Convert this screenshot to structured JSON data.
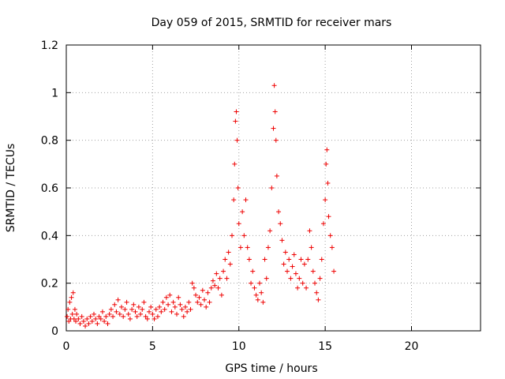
{
  "chart_data": {
    "type": "scatter",
    "title": "Day 059 of 2015, SRMTID for receiver mars",
    "xlabel": "GPS time / hours",
    "ylabel": "SRMTID / TECUs",
    "xlim": [
      0,
      24
    ],
    "ylim": [
      0,
      1.2
    ],
    "x_ticks": [
      0,
      5,
      10,
      15,
      20
    ],
    "y_ticks": [
      0,
      0.2,
      0.4,
      0.6,
      0.8,
      1,
      1.2
    ],
    "x_tick_labels": [
      "0",
      "5",
      "10",
      "15",
      "20"
    ],
    "y_tick_labels": [
      "0",
      "0.2",
      "0.4",
      "0.6",
      "0.8",
      "1",
      "1.2"
    ],
    "grid": true,
    "marker": "+",
    "colors": {
      "series": "#ee0000",
      "grid": "#a0a0a0",
      "axis": "#000000"
    },
    "series": [
      {
        "points": [
          [
            0.05,
            0.06
          ],
          [
            0.1,
            0.09
          ],
          [
            0.15,
            0.04
          ],
          [
            0.2,
            0.12
          ],
          [
            0.25,
            0.05
          ],
          [
            0.3,
            0.14
          ],
          [
            0.35,
            0.07
          ],
          [
            0.4,
            0.16
          ],
          [
            0.45,
            0.05
          ],
          [
            0.5,
            0.09
          ],
          [
            0.55,
            0.04
          ],
          [
            0.6,
            0.07
          ],
          [
            0.7,
            0.05
          ],
          [
            0.8,
            0.03
          ],
          [
            0.9,
            0.06
          ],
          [
            1.0,
            0.04
          ],
          [
            1.1,
            0.02
          ],
          [
            1.2,
            0.05
          ],
          [
            1.3,
            0.03
          ],
          [
            1.4,
            0.06
          ],
          [
            1.5,
            0.04
          ],
          [
            1.6,
            0.07
          ],
          [
            1.7,
            0.05
          ],
          [
            1.8,
            0.03
          ],
          [
            1.9,
            0.06
          ],
          [
            2.0,
            0.05
          ],
          [
            2.1,
            0.08
          ],
          [
            2.2,
            0.04
          ],
          [
            2.3,
            0.06
          ],
          [
            2.4,
            0.03
          ],
          [
            2.5,
            0.07
          ],
          [
            2.6,
            0.09
          ],
          [
            2.7,
            0.06
          ],
          [
            2.8,
            0.11
          ],
          [
            2.9,
            0.08
          ],
          [
            3.0,
            0.13
          ],
          [
            3.1,
            0.07
          ],
          [
            3.2,
            0.1
          ],
          [
            3.3,
            0.06
          ],
          [
            3.4,
            0.09
          ],
          [
            3.5,
            0.12
          ],
          [
            3.6,
            0.07
          ],
          [
            3.7,
            0.05
          ],
          [
            3.8,
            0.09
          ],
          [
            3.9,
            0.11
          ],
          [
            4.0,
            0.08
          ],
          [
            4.1,
            0.06
          ],
          [
            4.2,
            0.1
          ],
          [
            4.3,
            0.07
          ],
          [
            4.4,
            0.09
          ],
          [
            4.5,
            0.12
          ],
          [
            4.6,
            0.06
          ],
          [
            4.7,
            0.05
          ],
          [
            4.8,
            0.08
          ],
          [
            4.9,
            0.1
          ],
          [
            5.0,
            0.07
          ],
          [
            5.1,
            0.05
          ],
          [
            5.2,
            0.09
          ],
          [
            5.3,
            0.06
          ],
          [
            5.4,
            0.1
          ],
          [
            5.5,
            0.08
          ],
          [
            5.6,
            0.12
          ],
          [
            5.7,
            0.09
          ],
          [
            5.8,
            0.14
          ],
          [
            5.9,
            0.11
          ],
          [
            6.0,
            0.15
          ],
          [
            6.1,
            0.08
          ],
          [
            6.2,
            0.12
          ],
          [
            6.3,
            0.1
          ],
          [
            6.4,
            0.07
          ],
          [
            6.5,
            0.14
          ],
          [
            6.6,
            0.11
          ],
          [
            6.7,
            0.09
          ],
          [
            6.8,
            0.06
          ],
          [
            6.9,
            0.1
          ],
          [
            7.0,
            0.08
          ],
          [
            7.1,
            0.12
          ],
          [
            7.2,
            0.09
          ],
          [
            7.3,
            0.2
          ],
          [
            7.4,
            0.18
          ],
          [
            7.5,
            0.15
          ],
          [
            7.6,
            0.12
          ],
          [
            7.7,
            0.14
          ],
          [
            7.8,
            0.11
          ],
          [
            7.9,
            0.17
          ],
          [
            8.0,
            0.13
          ],
          [
            8.1,
            0.1
          ],
          [
            8.2,
            0.16
          ],
          [
            8.3,
            0.12
          ],
          [
            8.4,
            0.18
          ],
          [
            8.5,
            0.21
          ],
          [
            8.6,
            0.19
          ],
          [
            8.7,
            0.24
          ],
          [
            8.8,
            0.18
          ],
          [
            8.9,
            0.22
          ],
          [
            9.0,
            0.15
          ],
          [
            9.1,
            0.25
          ],
          [
            9.2,
            0.3
          ],
          [
            9.3,
            0.22
          ],
          [
            9.4,
            0.33
          ],
          [
            9.5,
            0.28
          ],
          [
            9.6,
            0.4
          ],
          [
            9.7,
            0.55
          ],
          [
            9.75,
            0.7
          ],
          [
            9.8,
            0.88
          ],
          [
            9.85,
            0.92
          ],
          [
            9.9,
            0.8
          ],
          [
            9.95,
            0.6
          ],
          [
            10.0,
            0.45
          ],
          [
            10.1,
            0.35
          ],
          [
            10.2,
            0.5
          ],
          [
            10.3,
            0.4
          ],
          [
            10.4,
            0.55
          ],
          [
            10.5,
            0.35
          ],
          [
            10.6,
            0.3
          ],
          [
            10.7,
            0.2
          ],
          [
            10.8,
            0.25
          ],
          [
            10.9,
            0.18
          ],
          [
            11.0,
            0.15
          ],
          [
            11.1,
            0.13
          ],
          [
            11.2,
            0.2
          ],
          [
            11.3,
            0.16
          ],
          [
            11.4,
            0.12
          ],
          [
            11.5,
            0.3
          ],
          [
            11.6,
            0.22
          ],
          [
            11.7,
            0.35
          ],
          [
            11.8,
            0.42
          ],
          [
            11.9,
            0.6
          ],
          [
            12.0,
            0.85
          ],
          [
            12.05,
            1.03
          ],
          [
            12.1,
            0.92
          ],
          [
            12.15,
            0.8
          ],
          [
            12.2,
            0.65
          ],
          [
            12.3,
            0.5
          ],
          [
            12.4,
            0.45
          ],
          [
            12.5,
            0.38
          ],
          [
            12.6,
            0.28
          ],
          [
            12.7,
            0.33
          ],
          [
            12.8,
            0.25
          ],
          [
            12.9,
            0.3
          ],
          [
            13.0,
            0.22
          ],
          [
            13.1,
            0.27
          ],
          [
            13.2,
            0.32
          ],
          [
            13.3,
            0.24
          ],
          [
            13.4,
            0.18
          ],
          [
            13.5,
            0.22
          ],
          [
            13.6,
            0.3
          ],
          [
            13.7,
            0.2
          ],
          [
            13.8,
            0.28
          ],
          [
            13.9,
            0.18
          ],
          [
            14.0,
            0.3
          ],
          [
            14.1,
            0.42
          ],
          [
            14.2,
            0.35
          ],
          [
            14.3,
            0.25
          ],
          [
            14.4,
            0.2
          ],
          [
            14.5,
            0.16
          ],
          [
            14.6,
            0.13
          ],
          [
            14.7,
            0.22
          ],
          [
            14.8,
            0.3
          ],
          [
            14.9,
            0.45
          ],
          [
            15.0,
            0.55
          ],
          [
            15.05,
            0.7
          ],
          [
            15.1,
            0.76
          ],
          [
            15.15,
            0.62
          ],
          [
            15.2,
            0.48
          ],
          [
            15.3,
            0.4
          ],
          [
            15.4,
            0.35
          ],
          [
            15.5,
            0.25
          ]
        ]
      }
    ]
  }
}
